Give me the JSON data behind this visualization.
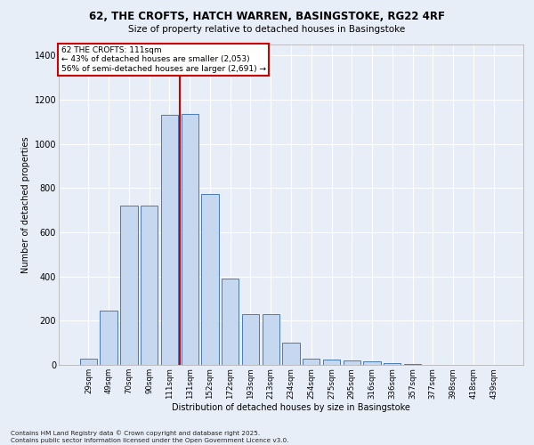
{
  "title_line1": "62, THE CROFTS, HATCH WARREN, BASINGSTOKE, RG22 4RF",
  "title_line2": "Size of property relative to detached houses in Basingstoke",
  "xlabel": "Distribution of detached houses by size in Basingstoke",
  "ylabel": "Number of detached properties",
  "bar_labels": [
    "29sqm",
    "49sqm",
    "70sqm",
    "90sqm",
    "111sqm",
    "131sqm",
    "152sqm",
    "172sqm",
    "193sqm",
    "213sqm",
    "234sqm",
    "254sqm",
    "275sqm",
    "295sqm",
    "316sqm",
    "336sqm",
    "357sqm",
    "377sqm",
    "398sqm",
    "418sqm",
    "439sqm"
  ],
  "bar_values": [
    30,
    245,
    720,
    720,
    1130,
    1135,
    775,
    390,
    230,
    230,
    100,
    30,
    25,
    20,
    15,
    8,
    3,
    2,
    1,
    1,
    1
  ],
  "bar_color": "#c5d8f0",
  "bar_edgecolor": "#4a7ab5",
  "red_line_index": 4,
  "annotation_line1": "62 THE CROFTS: 111sqm",
  "annotation_line2": "← 43% of detached houses are smaller (2,053)",
  "annotation_line3": "56% of semi-detached houses are larger (2,691) →",
  "annotation_box_color": "#ffffff",
  "annotation_box_edgecolor": "#cc0000",
  "vline_color": "#cc0000",
  "ylim": [
    0,
    1450
  ],
  "yticks": [
    0,
    200,
    400,
    600,
    800,
    1000,
    1200,
    1400
  ],
  "background_color": "#e8eef8",
  "grid_color": "#ffffff",
  "footer_line1": "Contains HM Land Registry data © Crown copyright and database right 2025.",
  "footer_line2": "Contains public sector information licensed under the Open Government Licence v3.0."
}
